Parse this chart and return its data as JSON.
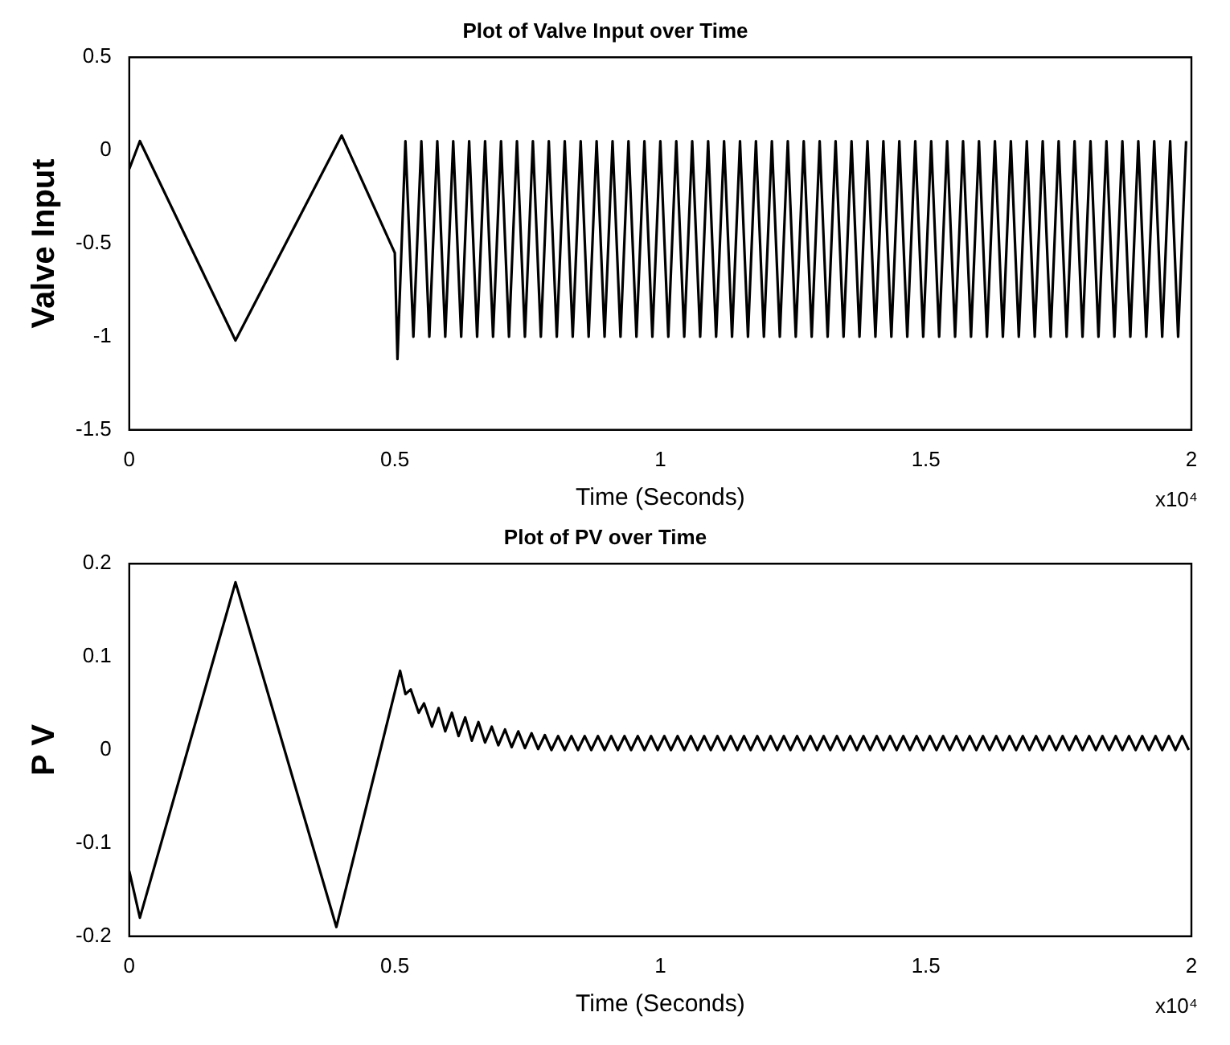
{
  "chart_data": [
    {
      "type": "line",
      "title": "Plot of Valve Input over Time",
      "xlabel": "Time (Seconds)",
      "ylabel": "Valve Input",
      "xlim": [
        0,
        2
      ],
      "xticks": [
        0,
        0.5,
        1,
        1.5,
        2
      ],
      "ylim": [
        -1.5,
        0.5
      ],
      "yticks": [
        -1.5,
        -1,
        -0.5,
        0,
        0.5
      ],
      "marker": "none",
      "annotations": [
        "x10⁴"
      ],
      "series": [
        {
          "color": "#000000",
          "x": [
            0,
            0.02,
            0.2,
            0.4,
            0.5,
            0.505,
            0.52,
            0.535,
            0.55,
            0.565,
            0.58,
            0.595,
            0.61,
            0.625,
            0.64,
            0.655,
            0.67,
            0.685,
            0.7,
            0.715,
            0.73,
            0.745,
            0.76,
            0.775,
            0.79,
            0.805,
            0.82,
            0.835,
            0.85,
            0.865,
            0.88,
            0.895,
            0.91,
            0.925,
            0.94,
            0.955,
            0.97,
            0.985,
            1,
            1.015,
            1.03,
            1.045,
            1.06,
            1.075,
            1.09,
            1.105,
            1.12,
            1.135,
            1.15,
            1.165,
            1.18,
            1.195,
            1.21,
            1.225,
            1.24,
            1.255,
            1.27,
            1.285,
            1.3,
            1.315,
            1.33,
            1.345,
            1.36,
            1.375,
            1.39,
            1.405,
            1.42,
            1.435,
            1.45,
            1.465,
            1.48,
            1.495,
            1.51,
            1.525,
            1.54,
            1.555,
            1.57,
            1.585,
            1.6,
            1.615,
            1.63,
            1.645,
            1.66,
            1.675,
            1.69,
            1.705,
            1.72,
            1.735,
            1.75,
            1.765,
            1.78,
            1.795,
            1.81,
            1.825,
            1.84,
            1.855,
            1.87,
            1.885,
            1.9,
            1.915,
            1.93,
            1.945,
            1.96,
            1.975,
            1.99
          ],
          "values": [
            -0.1,
            0.05,
            -1.02,
            0.08,
            -0.55,
            -1.12,
            0.05,
            -1,
            0.05,
            -1,
            0.05,
            -1,
            0.05,
            -1,
            0.05,
            -1,
            0.05,
            -1,
            0.05,
            -1,
            0.05,
            -1,
            0.05,
            -1,
            0.05,
            -1,
            0.05,
            -1,
            0.05,
            -1,
            0.05,
            -1,
            0.05,
            -1,
            0.05,
            -1,
            0.05,
            -1,
            0.05,
            -1,
            0.05,
            -1,
            0.05,
            -1,
            0.05,
            -1,
            0.05,
            -1,
            0.05,
            -1,
            0.05,
            -1,
            0.05,
            -1,
            0.05,
            -1,
            0.05,
            -1,
            0.05,
            -1,
            0.05,
            -1,
            0.05,
            -1,
            0.05,
            -1,
            0.05,
            -1,
            0.05,
            -1,
            0.05,
            -1,
            0.05,
            -1,
            0.05,
            -1,
            0.05,
            -1,
            0.05,
            -1,
            0.05,
            -1,
            0.05,
            -1,
            0.05,
            -1,
            0.05,
            -1,
            0.05,
            -1,
            0.05,
            -1,
            0.05,
            -1,
            0.05,
            -1,
            0.05,
            -1,
            0.05,
            -1,
            0.05,
            -1,
            0.05,
            -1,
            0.05
          ]
        }
      ]
    },
    {
      "type": "line",
      "title": "Plot of PV over Time",
      "xlabel": "Time (Seconds)",
      "ylabel": "P V",
      "xlim": [
        0,
        2
      ],
      "xticks": [
        0,
        0.5,
        1,
        1.5,
        2
      ],
      "ylim": [
        -0.2,
        0.2
      ],
      "yticks": [
        -0.2,
        -0.1,
        0,
        0.1,
        0.2
      ],
      "marker": "none",
      "annotations": [
        "x10⁴"
      ],
      "series": [
        {
          "color": "#000000",
          "x": [
            0,
            0.02,
            0.2,
            0.39,
            0.51,
            0.52,
            0.53,
            0.545,
            0.555,
            0.57,
            0.5825,
            0.595,
            0.6075,
            0.62,
            0.6325,
            0.645,
            0.6575,
            0.67,
            0.6825,
            0.695,
            0.7075,
            0.72,
            0.7325,
            0.745,
            0.7575,
            0.77,
            0.7825,
            0.795,
            0.8075,
            0.82,
            0.8325,
            0.845,
            0.8575,
            0.87,
            0.8825,
            0.895,
            0.9075,
            0.92,
            0.9325,
            0.945,
            0.9575,
            0.97,
            0.9825,
            0.995,
            1.0075,
            1.02,
            1.0325,
            1.045,
            1.0575,
            1.07,
            1.0825,
            1.095,
            1.1075,
            1.12,
            1.1325,
            1.145,
            1.1575,
            1.17,
            1.1825,
            1.195,
            1.2075,
            1.22,
            1.2325,
            1.245,
            1.2575,
            1.27,
            1.2825,
            1.295,
            1.3075,
            1.32,
            1.3325,
            1.345,
            1.3575,
            1.37,
            1.3825,
            1.395,
            1.4075,
            1.42,
            1.4325,
            1.445,
            1.4575,
            1.47,
            1.4825,
            1.495,
            1.5075,
            1.52,
            1.5325,
            1.545,
            1.5575,
            1.57,
            1.5825,
            1.595,
            1.6075,
            1.62,
            1.6325,
            1.645,
            1.6575,
            1.67,
            1.6825,
            1.695,
            1.7075,
            1.72,
            1.7325,
            1.745,
            1.7575,
            1.77,
            1.7825,
            1.795,
            1.8075,
            1.82,
            1.8325,
            1.845,
            1.8575,
            1.87,
            1.8825,
            1.895,
            1.9075,
            1.92,
            1.9325,
            1.945,
            1.9575,
            1.97,
            1.9825,
            1.995
          ],
          "values": [
            -0.13,
            -0.18,
            0.18,
            -0.19,
            0.085,
            0.06,
            0.065,
            0.04,
            0.05,
            0.025,
            0.045,
            0.02,
            0.04,
            0.015,
            0.035,
            0.01,
            0.03,
            0.008,
            0.025,
            0.005,
            0.022,
            0.003,
            0.02,
            0.002,
            0.018,
            0.001,
            0.016,
            0,
            0.015,
            0,
            0.015,
            0,
            0.015,
            0,
            0.015,
            0,
            0.015,
            0,
            0.015,
            0,
            0.015,
            0,
            0.015,
            0,
            0.015,
            0,
            0.015,
            0,
            0.015,
            0,
            0.015,
            0,
            0.015,
            0,
            0.015,
            0,
            0.015,
            0,
            0.015,
            0,
            0.015,
            0,
            0.015,
            0,
            0.015,
            0,
            0.015,
            0,
            0.015,
            0,
            0.015,
            0,
            0.015,
            0,
            0.015,
            0,
            0.015,
            0,
            0.015,
            0,
            0.015,
            0,
            0.015,
            0,
            0.015,
            0,
            0.015,
            0,
            0.015,
            0,
            0.015,
            0,
            0.015,
            0,
            0.015,
            0,
            0.015,
            0,
            0.015,
            0,
            0.015,
            0,
            0.015,
            0,
            0.015,
            0,
            0.015,
            0,
            0.015,
            0,
            0.015,
            0,
            0.015,
            0,
            0.015,
            0,
            0.015,
            0,
            0.015,
            0,
            0.015,
            0,
            0.015,
            0
          ]
        }
      ]
    }
  ]
}
